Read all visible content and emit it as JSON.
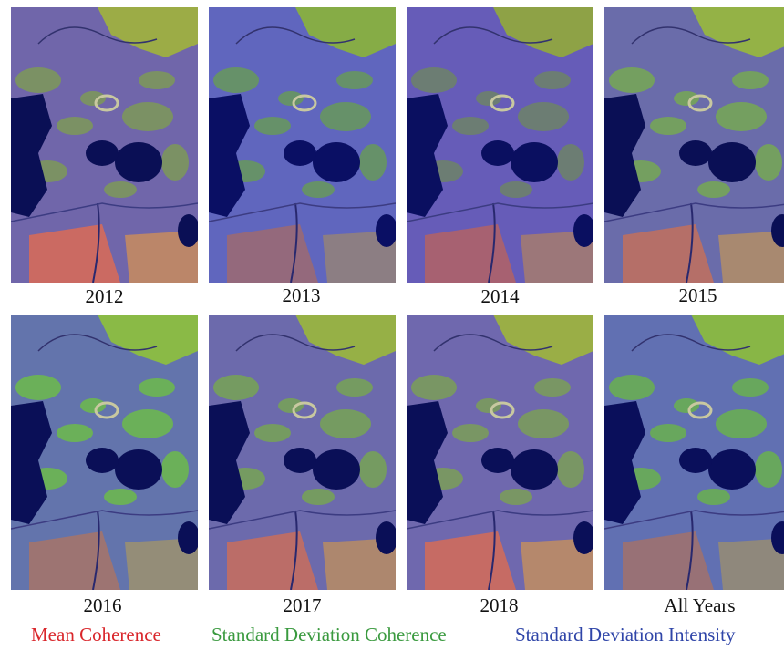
{
  "panels": [
    {
      "year": "2012",
      "red": 0.9,
      "green": 0.55,
      "blue": 0.5,
      "mode": "r"
    },
    {
      "year": "2013",
      "red": 0.35,
      "green": 0.55,
      "blue": 1.0,
      "mode": "b"
    },
    {
      "year": "2014",
      "red": 0.55,
      "green": 0.3,
      "blue": 0.85,
      "mode": "rb"
    },
    {
      "year": "2015",
      "red": 0.7,
      "green": 0.7,
      "blue": 0.5,
      "mode": "r"
    },
    {
      "year": "2016",
      "red": 0.45,
      "green": 0.9,
      "blue": 0.55,
      "mode": "g"
    },
    {
      "year": "2017",
      "red": 0.75,
      "green": 0.65,
      "blue": 0.55,
      "mode": "r"
    },
    {
      "year": "2018",
      "red": 0.85,
      "green": 0.6,
      "blue": 0.6,
      "mode": "r"
    },
    {
      "year": "All Years",
      "red": 0.4,
      "green": 0.8,
      "blue": 0.7,
      "mode": "g"
    }
  ],
  "legend": {
    "mean_coherence": "Mean Coherence",
    "std_coherence": "Standard Deviation Coherence",
    "std_intensity": "Standard Deviation Intensity"
  },
  "colors": {
    "mean_coherence": "#d9262b",
    "std_coherence": "#3a9a3f",
    "std_intensity": "#2f45a8"
  }
}
